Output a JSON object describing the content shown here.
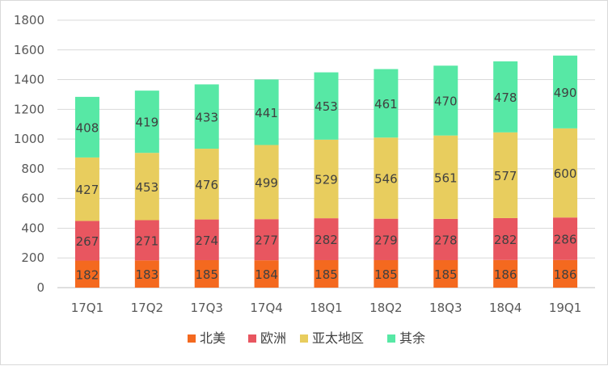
{
  "chart_data": {
    "type": "bar",
    "stacked": true,
    "categories": [
      "17Q1",
      "17Q2",
      "17Q3",
      "17Q4",
      "18Q1",
      "18Q2",
      "18Q3",
      "18Q4",
      "19Q1"
    ],
    "series": [
      {
        "name": "北美",
        "color": "#f4691f",
        "values": [
          182,
          183,
          185,
          184,
          185,
          185,
          185,
          186,
          186
        ]
      },
      {
        "name": "欧洲",
        "color": "#e85660",
        "values": [
          267,
          271,
          274,
          277,
          282,
          279,
          278,
          282,
          286
        ]
      },
      {
        "name": "亚太地区",
        "color": "#e8cd5e",
        "values": [
          427,
          453,
          476,
          499,
          529,
          546,
          561,
          577,
          600
        ]
      },
      {
        "name": "其余",
        "color": "#57e8a5",
        "values": [
          408,
          419,
          433,
          441,
          453,
          461,
          470,
          478,
          490
        ]
      }
    ],
    "yticks": [
      0,
      200,
      400,
      600,
      800,
      1000,
      1200,
      1400,
      1600,
      1800
    ],
    "ylim": [
      0,
      1800
    ],
    "grid": true,
    "legend": "bottom"
  }
}
